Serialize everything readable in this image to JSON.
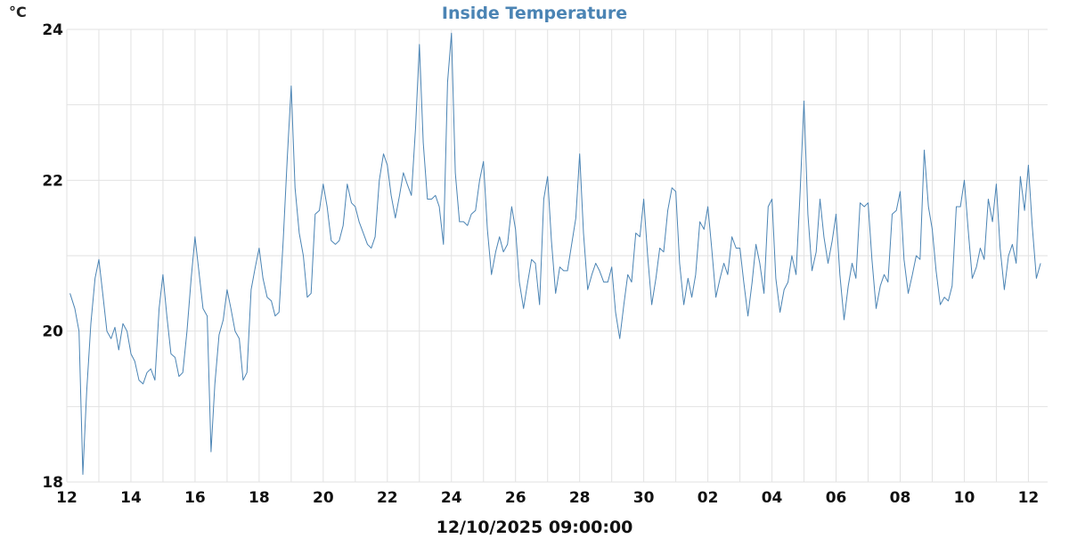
{
  "chart_data": {
    "type": "line",
    "title": "Inside Temperature",
    "ylabel": "°C",
    "xlabel": "12/10/2025 09:00:00",
    "ylim": [
      18,
      24
    ],
    "yticks": [
      18,
      20,
      22,
      24
    ],
    "ygrid_step": 1,
    "xlim": [
      0,
      30.6
    ],
    "xticks": [
      {
        "x": 0,
        "label": "12"
      },
      {
        "x": 2,
        "label": "14"
      },
      {
        "x": 4,
        "label": "16"
      },
      {
        "x": 6,
        "label": "18"
      },
      {
        "x": 8,
        "label": "20"
      },
      {
        "x": 10,
        "label": "22"
      },
      {
        "x": 12,
        "label": "24"
      },
      {
        "x": 14,
        "label": "26"
      },
      {
        "x": 16,
        "label": "28"
      },
      {
        "x": 18,
        "label": "30"
      },
      {
        "x": 20,
        "label": "02"
      },
      {
        "x": 22,
        "label": "04"
      },
      {
        "x": 24,
        "label": "06"
      },
      {
        "x": 26,
        "label": "08"
      },
      {
        "x": 28,
        "label": "10"
      },
      {
        "x": 30,
        "label": "12"
      }
    ],
    "grid": true,
    "color": "#4b84b4",
    "series": [
      {
        "points": [
          [
            0.1,
            20.5
          ],
          [
            0.25,
            20.3
          ],
          [
            0.38,
            20.0
          ],
          [
            0.5,
            18.1
          ],
          [
            0.62,
            19.2
          ],
          [
            0.75,
            20.1
          ],
          [
            0.88,
            20.7
          ],
          [
            1.0,
            20.95
          ],
          [
            1.12,
            20.5
          ],
          [
            1.25,
            20.0
          ],
          [
            1.38,
            19.9
          ],
          [
            1.5,
            20.05
          ],
          [
            1.62,
            19.75
          ],
          [
            1.75,
            20.1
          ],
          [
            1.88,
            20.0
          ],
          [
            2.0,
            19.7
          ],
          [
            2.12,
            19.6
          ],
          [
            2.25,
            19.35
          ],
          [
            2.38,
            19.3
          ],
          [
            2.5,
            19.45
          ],
          [
            2.62,
            19.5
          ],
          [
            2.75,
            19.35
          ],
          [
            2.88,
            20.3
          ],
          [
            3.0,
            20.75
          ],
          [
            3.12,
            20.2
          ],
          [
            3.25,
            19.7
          ],
          [
            3.38,
            19.65
          ],
          [
            3.5,
            19.4
          ],
          [
            3.62,
            19.45
          ],
          [
            3.75,
            20.0
          ],
          [
            3.88,
            20.7
          ],
          [
            4.0,
            21.25
          ],
          [
            4.12,
            20.8
          ],
          [
            4.25,
            20.3
          ],
          [
            4.38,
            20.2
          ],
          [
            4.5,
            18.4
          ],
          [
            4.62,
            19.3
          ],
          [
            4.75,
            19.95
          ],
          [
            4.88,
            20.15
          ],
          [
            5.0,
            20.55
          ],
          [
            5.12,
            20.3
          ],
          [
            5.25,
            20.0
          ],
          [
            5.38,
            19.9
          ],
          [
            5.5,
            19.35
          ],
          [
            5.62,
            19.45
          ],
          [
            5.75,
            20.55
          ],
          [
            5.88,
            20.85
          ],
          [
            6.0,
            21.1
          ],
          [
            6.12,
            20.7
          ],
          [
            6.25,
            20.45
          ],
          [
            6.38,
            20.4
          ],
          [
            6.5,
            20.2
          ],
          [
            6.62,
            20.25
          ],
          [
            6.75,
            21.2
          ],
          [
            6.88,
            22.3
          ],
          [
            7.0,
            23.25
          ],
          [
            7.12,
            21.9
          ],
          [
            7.25,
            21.3
          ],
          [
            7.38,
            21.0
          ],
          [
            7.5,
            20.45
          ],
          [
            7.62,
            20.5
          ],
          [
            7.75,
            21.55
          ],
          [
            7.88,
            21.6
          ],
          [
            8.0,
            21.95
          ],
          [
            8.12,
            21.65
          ],
          [
            8.25,
            21.2
          ],
          [
            8.38,
            21.15
          ],
          [
            8.5,
            21.2
          ],
          [
            8.62,
            21.4
          ],
          [
            8.75,
            21.95
          ],
          [
            8.88,
            21.7
          ],
          [
            9.0,
            21.65
          ],
          [
            9.12,
            21.45
          ],
          [
            9.25,
            21.3
          ],
          [
            9.38,
            21.15
          ],
          [
            9.5,
            21.1
          ],
          [
            9.62,
            21.25
          ],
          [
            9.75,
            22.0
          ],
          [
            9.88,
            22.35
          ],
          [
            10.0,
            22.2
          ],
          [
            10.12,
            21.8
          ],
          [
            10.25,
            21.5
          ],
          [
            10.38,
            21.8
          ],
          [
            10.5,
            22.1
          ],
          [
            10.62,
            21.95
          ],
          [
            10.75,
            21.8
          ],
          [
            10.88,
            22.7
          ],
          [
            11.0,
            23.8
          ],
          [
            11.12,
            22.5
          ],
          [
            11.25,
            21.75
          ],
          [
            11.38,
            21.75
          ],
          [
            11.5,
            21.8
          ],
          [
            11.62,
            21.65
          ],
          [
            11.75,
            21.15
          ],
          [
            11.88,
            23.3
          ],
          [
            12.0,
            23.95
          ],
          [
            12.12,
            22.1
          ],
          [
            12.25,
            21.45
          ],
          [
            12.38,
            21.45
          ],
          [
            12.5,
            21.4
          ],
          [
            12.62,
            21.55
          ],
          [
            12.75,
            21.6
          ],
          [
            12.88,
            22.0
          ],
          [
            13.0,
            22.25
          ],
          [
            13.12,
            21.35
          ],
          [
            13.25,
            20.75
          ],
          [
            13.38,
            21.05
          ],
          [
            13.5,
            21.25
          ],
          [
            13.62,
            21.05
          ],
          [
            13.75,
            21.15
          ],
          [
            13.88,
            21.65
          ],
          [
            14.0,
            21.35
          ],
          [
            14.12,
            20.65
          ],
          [
            14.25,
            20.3
          ],
          [
            14.38,
            20.65
          ],
          [
            14.5,
            20.95
          ],
          [
            14.62,
            20.9
          ],
          [
            14.75,
            20.35
          ],
          [
            14.88,
            21.75
          ],
          [
            15.0,
            22.05
          ],
          [
            15.12,
            21.2
          ],
          [
            15.25,
            20.5
          ],
          [
            15.38,
            20.85
          ],
          [
            15.5,
            20.8
          ],
          [
            15.62,
            20.8
          ],
          [
            15.75,
            21.15
          ],
          [
            15.88,
            21.5
          ],
          [
            16.0,
            22.35
          ],
          [
            16.12,
            21.3
          ],
          [
            16.25,
            20.55
          ],
          [
            16.38,
            20.75
          ],
          [
            16.5,
            20.9
          ],
          [
            16.62,
            20.8
          ],
          [
            16.75,
            20.65
          ],
          [
            16.88,
            20.65
          ],
          [
            17.0,
            20.85
          ],
          [
            17.12,
            20.25
          ],
          [
            17.25,
            19.9
          ],
          [
            17.38,
            20.35
          ],
          [
            17.5,
            20.75
          ],
          [
            17.62,
            20.65
          ],
          [
            17.75,
            21.3
          ],
          [
            17.88,
            21.25
          ],
          [
            18.0,
            21.75
          ],
          [
            18.12,
            21.0
          ],
          [
            18.25,
            20.35
          ],
          [
            18.38,
            20.7
          ],
          [
            18.5,
            21.1
          ],
          [
            18.62,
            21.05
          ],
          [
            18.75,
            21.6
          ],
          [
            18.88,
            21.9
          ],
          [
            19.0,
            21.85
          ],
          [
            19.12,
            20.9
          ],
          [
            19.25,
            20.35
          ],
          [
            19.38,
            20.7
          ],
          [
            19.5,
            20.45
          ],
          [
            19.62,
            20.75
          ],
          [
            19.75,
            21.45
          ],
          [
            19.88,
            21.35
          ],
          [
            20.0,
            21.65
          ],
          [
            20.12,
            21.1
          ],
          [
            20.25,
            20.45
          ],
          [
            20.38,
            20.7
          ],
          [
            20.5,
            20.9
          ],
          [
            20.62,
            20.75
          ],
          [
            20.75,
            21.25
          ],
          [
            20.88,
            21.1
          ],
          [
            21.0,
            21.1
          ],
          [
            21.12,
            20.65
          ],
          [
            21.25,
            20.2
          ],
          [
            21.38,
            20.65
          ],
          [
            21.5,
            21.15
          ],
          [
            21.62,
            20.9
          ],
          [
            21.75,
            20.5
          ],
          [
            21.88,
            21.65
          ],
          [
            22.0,
            21.75
          ],
          [
            22.12,
            20.7
          ],
          [
            22.25,
            20.25
          ],
          [
            22.38,
            20.55
          ],
          [
            22.5,
            20.65
          ],
          [
            22.62,
            21.0
          ],
          [
            22.75,
            20.75
          ],
          [
            22.88,
            21.85
          ],
          [
            23.0,
            23.05
          ],
          [
            23.12,
            21.55
          ],
          [
            23.25,
            20.8
          ],
          [
            23.38,
            21.05
          ],
          [
            23.5,
            21.75
          ],
          [
            23.62,
            21.25
          ],
          [
            23.75,
            20.9
          ],
          [
            23.88,
            21.2
          ],
          [
            24.0,
            21.55
          ],
          [
            24.12,
            20.75
          ],
          [
            24.25,
            20.15
          ],
          [
            24.38,
            20.6
          ],
          [
            24.5,
            20.9
          ],
          [
            24.62,
            20.7
          ],
          [
            24.75,
            21.7
          ],
          [
            24.88,
            21.65
          ],
          [
            25.0,
            21.7
          ],
          [
            25.12,
            20.95
          ],
          [
            25.25,
            20.3
          ],
          [
            25.38,
            20.6
          ],
          [
            25.5,
            20.75
          ],
          [
            25.62,
            20.65
          ],
          [
            25.75,
            21.55
          ],
          [
            25.88,
            21.6
          ],
          [
            26.0,
            21.85
          ],
          [
            26.12,
            20.95
          ],
          [
            26.25,
            20.5
          ],
          [
            26.38,
            20.75
          ],
          [
            26.5,
            21.0
          ],
          [
            26.62,
            20.95
          ],
          [
            26.75,
            22.4
          ],
          [
            26.88,
            21.65
          ],
          [
            27.0,
            21.35
          ],
          [
            27.12,
            20.8
          ],
          [
            27.25,
            20.35
          ],
          [
            27.38,
            20.45
          ],
          [
            27.5,
            20.4
          ],
          [
            27.62,
            20.6
          ],
          [
            27.75,
            21.65
          ],
          [
            27.88,
            21.65
          ],
          [
            28.0,
            22.0
          ],
          [
            28.12,
            21.35
          ],
          [
            28.25,
            20.7
          ],
          [
            28.38,
            20.85
          ],
          [
            28.5,
            21.1
          ],
          [
            28.62,
            20.95
          ],
          [
            28.75,
            21.75
          ],
          [
            28.88,
            21.45
          ],
          [
            29.0,
            21.95
          ],
          [
            29.12,
            21.1
          ],
          [
            29.25,
            20.55
          ],
          [
            29.38,
            21.0
          ],
          [
            29.5,
            21.15
          ],
          [
            29.62,
            20.9
          ],
          [
            29.75,
            22.05
          ],
          [
            29.88,
            21.6
          ],
          [
            30.0,
            22.2
          ],
          [
            30.12,
            21.4
          ],
          [
            30.25,
            20.7
          ],
          [
            30.38,
            20.9
          ]
        ]
      }
    ]
  }
}
